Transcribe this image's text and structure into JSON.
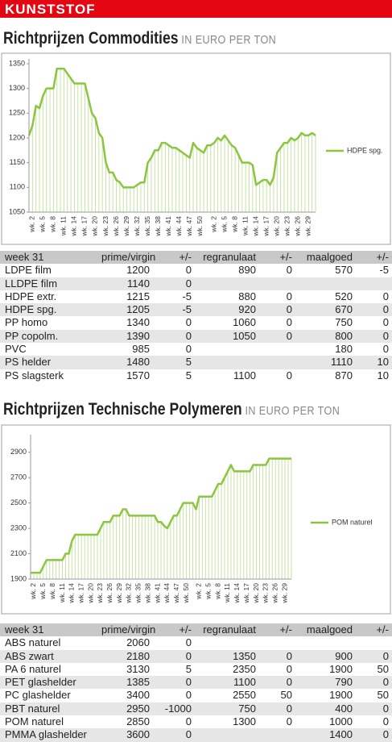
{
  "header": {
    "title": "KUNSTSTOF"
  },
  "chart_data": [
    {
      "type": "line",
      "title": "Richtprijzen Commodities",
      "subtitle": "IN EURO PER TON",
      "categories": [
        null,
        "wk. 2",
        null,
        null,
        "wk. 5",
        null,
        null,
        "wk. 8",
        null,
        null,
        "wk. 11",
        null,
        null,
        "wk. 14",
        null,
        null,
        "wk. 17",
        null,
        null,
        "wk. 20",
        null,
        null,
        "wk. 23",
        null,
        null,
        "wk. 26",
        null,
        null,
        "wk. 29",
        null,
        null,
        "wk. 32",
        null,
        null,
        "wk. 35",
        null,
        null,
        "wk. 38",
        null,
        null,
        "wk. 41",
        null,
        null,
        "wk. 44",
        null,
        null,
        "wk. 47",
        null,
        null,
        "wk. 50",
        null,
        null,
        null,
        "wk. 2",
        null,
        null,
        "wk. 5",
        null,
        null,
        "wk. 8",
        null,
        null,
        "wk. 11",
        null,
        null,
        "wk. 14",
        null,
        null,
        "wk. 17",
        null,
        null,
        "wk. 20",
        null,
        null,
        "wk. 23",
        null,
        null,
        "wk. 26",
        null,
        null,
        "wk. 29",
        null,
        null
      ],
      "series": [
        {
          "name": "HDPE spg.",
          "color": "#8cc63f",
          "values": [
            1205,
            1225,
            1265,
            1260,
            1285,
            1300,
            1300,
            1300,
            1340,
            1340,
            1340,
            1330,
            1320,
            1310,
            1310,
            1310,
            1310,
            1280,
            1250,
            1240,
            1210,
            1200,
            1150,
            1130,
            1130,
            1115,
            1110,
            1100,
            1100,
            1100,
            1100,
            1105,
            1110,
            1110,
            1150,
            1160,
            1175,
            1175,
            1190,
            1190,
            1185,
            1180,
            1180,
            1175,
            1170,
            1165,
            1160,
            1190,
            1180,
            1175,
            1170,
            1185,
            1185,
            1190,
            1200,
            1195,
            1205,
            1195,
            1185,
            1180,
            1165,
            1150,
            1150,
            1150,
            1145,
            1105,
            1110,
            1115,
            1115,
            1105,
            1120,
            1170,
            1180,
            1190,
            1190,
            1200,
            1195,
            1200,
            1210,
            1205,
            1205,
            1210,
            1205
          ]
        }
      ],
      "drop_line_color": "#c6e3a4",
      "ylim": [
        1050,
        1350
      ],
      "yticks": [
        1050,
        1100,
        1150,
        1200,
        1250,
        1300,
        1350
      ],
      "grid": false,
      "legend": "right"
    },
    {
      "type": "line",
      "title": "Richtprijzen Technische Polymeren",
      "subtitle": "IN EURO PER TON",
      "categories": [
        null,
        "wk. 2",
        null,
        null,
        "wk. 5",
        null,
        null,
        "wk. 8",
        null,
        null,
        "wk. 11",
        null,
        null,
        "wk. 14",
        null,
        null,
        "wk. 17",
        null,
        null,
        "wk. 20",
        null,
        null,
        "wk. 23",
        null,
        null,
        "wk. 26",
        null,
        null,
        "wk. 29",
        null,
        null,
        "wk. 32",
        null,
        null,
        "wk. 35",
        null,
        null,
        "wk. 38",
        null,
        null,
        "wk. 41",
        null,
        null,
        "wk. 44",
        null,
        null,
        "wk. 47",
        null,
        null,
        "wk. 50",
        null,
        null,
        null,
        "wk. 2",
        null,
        null,
        "wk. 5",
        null,
        null,
        "wk. 8",
        null,
        null,
        "wk. 11",
        null,
        null,
        "wk. 14",
        null,
        null,
        "wk. 17",
        null,
        null,
        "wk. 20",
        null,
        null,
        "wk. 23",
        null,
        null,
        "wk. 26",
        null,
        null,
        "wk. 29",
        null,
        null
      ],
      "series": [
        {
          "name": "POM naturel",
          "color": "#8cc63f",
          "values": [
            1950,
            1950,
            1950,
            1950,
            2000,
            2050,
            2050,
            2050,
            2050,
            2050,
            2050,
            2100,
            2100,
            2200,
            2250,
            2250,
            2250,
            2250,
            2250,
            2250,
            2250,
            2250,
            2300,
            2350,
            2350,
            2350,
            2400,
            2400,
            2400,
            2450,
            2450,
            2400,
            2400,
            2400,
            2400,
            2400,
            2400,
            2400,
            2400,
            2400,
            2350,
            2350,
            2320,
            2300,
            2350,
            2400,
            2400,
            2450,
            2500,
            2500,
            2500,
            2500,
            2450,
            2550,
            2550,
            2550,
            2550,
            2550,
            2600,
            2650,
            2650,
            2700,
            2750,
            2800,
            2750,
            2750,
            2750,
            2750,
            2750,
            2750,
            2800,
            2800,
            2800,
            2800,
            2800,
            2850,
            2850,
            2850,
            2850,
            2850,
            2850,
            2850,
            2850
          ]
        }
      ],
      "drop_line_color": "#c6e3a4",
      "ylim": [
        1900,
        3000
      ],
      "yticks": [
        1900,
        2100,
        2300,
        2500,
        2700,
        2900
      ],
      "grid": false,
      "legend": "right"
    }
  ],
  "tables": [
    {
      "header": [
        "week 31",
        "prime/virgin",
        "+/-",
        "regranulaat",
        "+/-",
        "maalgoed",
        "+/-"
      ],
      "rows": [
        [
          "LDPE film",
          1200,
          0,
          890,
          0,
          570,
          -5
        ],
        [
          "LLDPE film",
          1140,
          0,
          null,
          null,
          null,
          null
        ],
        [
          "HDPE extr.",
          1215,
          -5,
          880,
          0,
          520,
          0
        ],
        [
          "HDPE spg.",
          1205,
          -5,
          920,
          0,
          670,
          0
        ],
        [
          "PP homo",
          1340,
          0,
          1060,
          0,
          750,
          0
        ],
        [
          "PP copolm.",
          1390,
          0,
          1050,
          0,
          800,
          0
        ],
        [
          "PVC",
          985,
          0,
          null,
          null,
          180,
          0
        ],
        [
          "PS helder",
          1480,
          5,
          null,
          null,
          1110,
          10
        ],
        [
          "PS slagsterk",
          1570,
          5,
          1100,
          0,
          870,
          10
        ]
      ]
    },
    {
      "header": [
        "week 31",
        "prime/virgin",
        "+/-",
        "regranulaat",
        "+/-",
        "maalgoed",
        "+/-"
      ],
      "rows": [
        [
          "ABS naturel",
          2060,
          0,
          null,
          null,
          null,
          null
        ],
        [
          "ABS zwart",
          2180,
          0,
          1350,
          0,
          900,
          0
        ],
        [
          "PA 6 naturel",
          3130,
          5,
          2350,
          0,
          1900,
          50
        ],
        [
          "PET glashelder",
          1385,
          0,
          1100,
          0,
          790,
          0
        ],
        [
          "PC glashelder",
          3400,
          0,
          2550,
          50,
          1900,
          50
        ],
        [
          "PBT naturel",
          2950,
          -1000,
          750,
          0,
          400,
          0
        ],
        [
          "POM naturel",
          2850,
          0,
          1300,
          0,
          1000,
          0
        ],
        [
          "PMMA glashelder",
          3600,
          0,
          null,
          null,
          1400,
          0
        ]
      ]
    }
  ]
}
